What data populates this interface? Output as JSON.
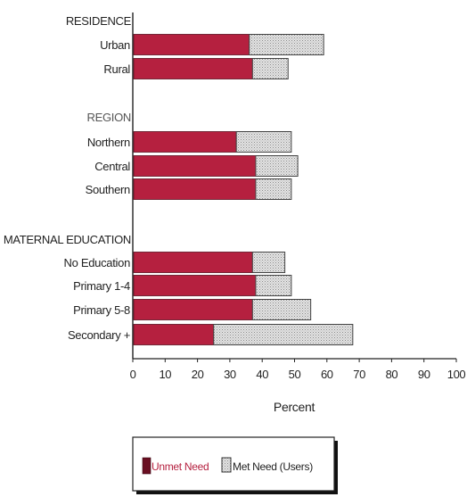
{
  "chart_data": {
    "type": "bar",
    "orientation": "horizontal",
    "stacked": true,
    "title": "",
    "xlabel": "Percent",
    "ylabel": "",
    "xlim": [
      0,
      100
    ],
    "x_ticks": [
      "0",
      "10",
      "20",
      "30",
      "40",
      "50",
      "60",
      "70",
      "80",
      "90",
      "100"
    ],
    "groups": [
      {
        "heading": "RESIDENCE",
        "categories": [
          "Urban",
          "Rural"
        ]
      },
      {
        "heading": "REGION",
        "categories": [
          "Northern",
          "Central",
          "Southern"
        ]
      },
      {
        "heading": "MATERNAL EDUCATION",
        "categories": [
          "No Education",
          "Primary 1-4",
          "Primary 5-8",
          "Secondary +"
        ]
      }
    ],
    "categories": [
      "Urban",
      "Rural",
      "Northern",
      "Central",
      "Southern",
      "No Education",
      "Primary 1-4",
      "Primary 5-8",
      "Secondary +"
    ],
    "series": [
      {
        "name": "Unmet Need",
        "values": [
          36,
          37,
          32,
          38,
          38,
          37,
          38,
          37,
          25
        ]
      },
      {
        "name": "Met Need (Users)",
        "values": [
          23,
          11,
          17,
          13,
          11,
          10,
          11,
          18,
          43
        ]
      }
    ],
    "colors": {
      "unmet": "#b5203f",
      "met": "#d6d6d6"
    },
    "grid": false,
    "legend_position": "bottom"
  }
}
